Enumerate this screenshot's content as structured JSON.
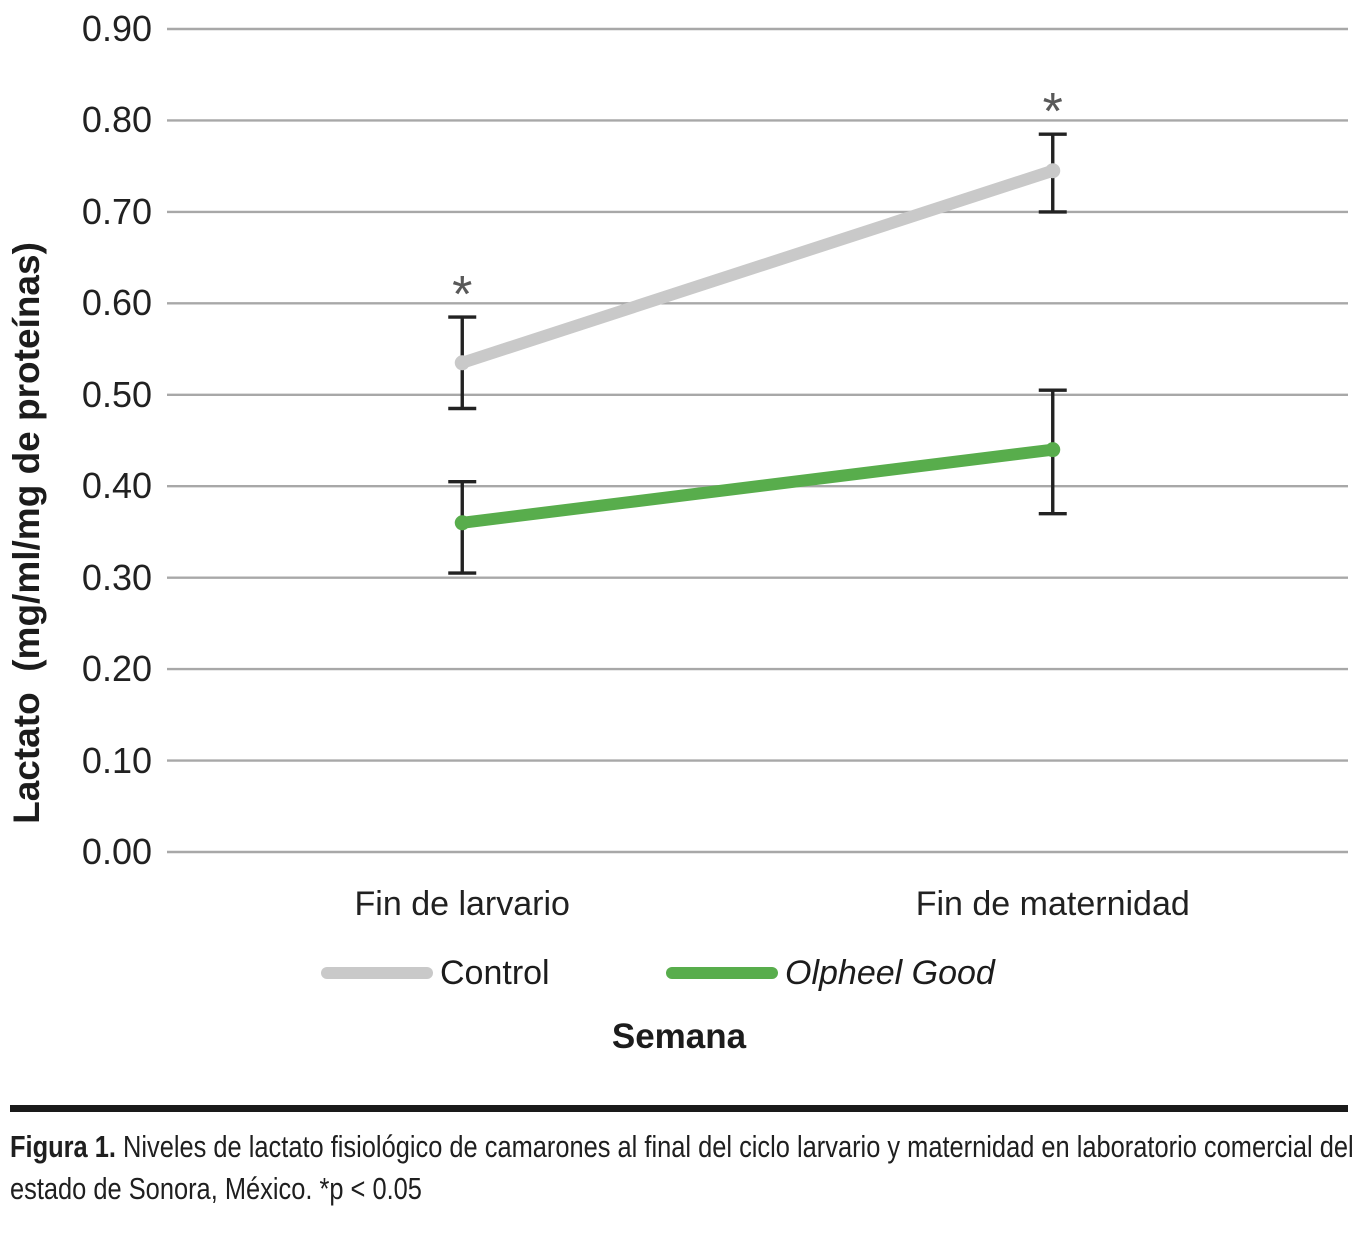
{
  "figure": {
    "caption_label": "Figura 1.",
    "caption_text": " Niveles de lactato fisiológico de camarones al final del ciclo larvario y maternidad en laboratorio comercial del estado de Sonora, México. *p < 0.05"
  },
  "chart_data": {
    "type": "line",
    "categories": [
      "Fin de larvario",
      "Fin de maternidad"
    ],
    "series": [
      {
        "name": "Control",
        "color": "#c9c9c9",
        "italic": false,
        "values": [
          0.535,
          0.745
        ],
        "error_low": [
          0.485,
          0.7
        ],
        "error_high": [
          0.585,
          0.785
        ],
        "significant": [
          true,
          true
        ]
      },
      {
        "name": "Olpheel Good",
        "color": "#58ad4c",
        "italic": true,
        "values": [
          0.36,
          0.44
        ],
        "error_low": [
          0.305,
          0.37
        ],
        "error_high": [
          0.405,
          0.505
        ],
        "significant": [
          false,
          false
        ]
      }
    ],
    "title": "",
    "xlabel": "Semana",
    "ylabel": "Lactato  (mg/ml/mg de proteínas)",
    "ylim": [
      0,
      0.9
    ],
    "ytick_step": 0.1,
    "ytick_decimals": 2,
    "grid": "horizontal",
    "legend_position": "bottom",
    "significance_marker": "*",
    "significance_note": "*p < 0.05",
    "colors": {
      "gridline": "#a8a8a8",
      "error_bar": "#222222",
      "asterisk": "#595959",
      "tick_text": "#212121"
    }
  }
}
